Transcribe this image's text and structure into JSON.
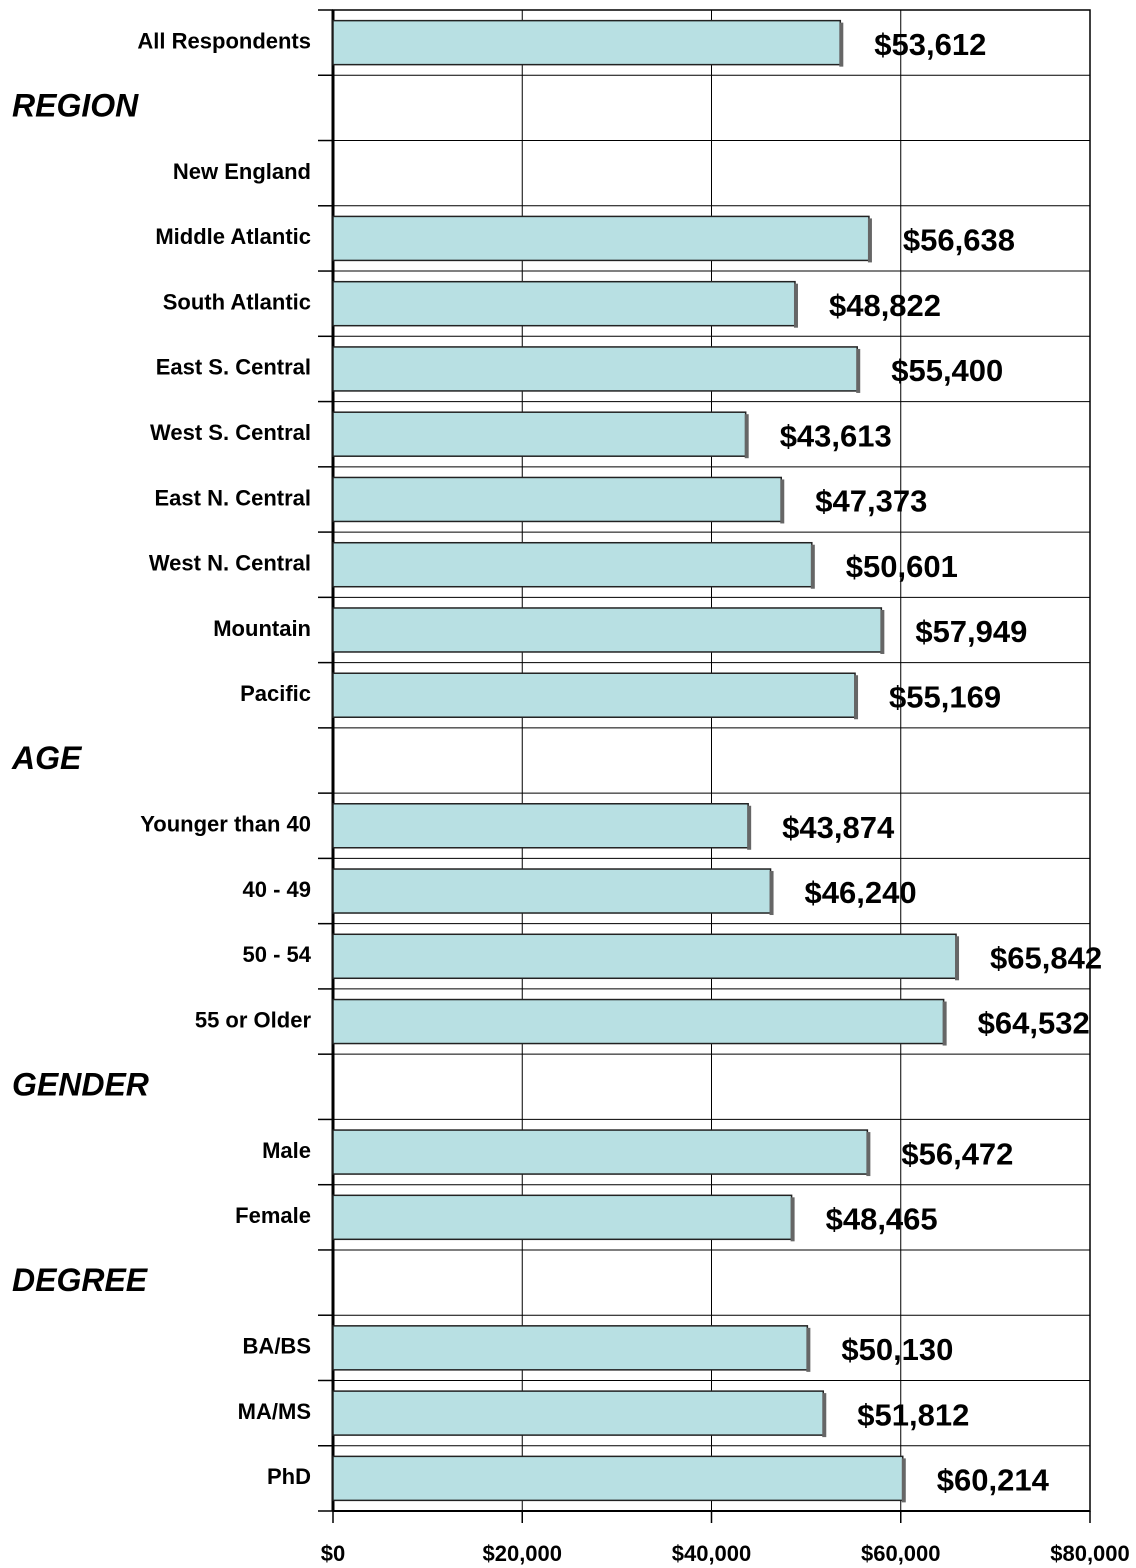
{
  "chart_data": {
    "type": "bar",
    "orientation": "horizontal",
    "color": "#b8e0e3",
    "grid": true,
    "xlim": [
      0,
      80000
    ],
    "xticks": [
      {
        "value": 0,
        "label": "$0"
      },
      {
        "value": 20000,
        "label": "$20,000"
      },
      {
        "value": 40000,
        "label": "$40,000"
      },
      {
        "value": 60000,
        "label": "$60,000"
      },
      {
        "value": 80000,
        "label": "$80,000"
      }
    ],
    "groups": [
      {
        "categories": [
          "All Respondents"
        ],
        "values": [
          53612
        ],
        "value_labels": [
          "$53,612"
        ]
      },
      {
        "name": "REGION",
        "categories": [
          "New England",
          "Middle Atlantic",
          "South Atlantic",
          "East S. Central",
          "West S. Central",
          "East N. Central",
          "West N. Central",
          "Mountain",
          "Pacific"
        ],
        "values": [
          null,
          56638,
          48822,
          55400,
          43613,
          47373,
          50601,
          57949,
          55169
        ],
        "value_labels": [
          null,
          "$56,638",
          "$48,822",
          "$55,400",
          "$43,613",
          "$47,373",
          "$50,601",
          "$57,949",
          "$55,169"
        ]
      },
      {
        "name": "AGE",
        "categories": [
          "Younger than 40",
          "40 - 49",
          "50 - 54",
          "55 or Older"
        ],
        "values": [
          43874,
          46240,
          65842,
          64532
        ],
        "value_labels": [
          "$43,874",
          "$46,240",
          "$65,842",
          "$64,532"
        ]
      },
      {
        "name": "GENDER",
        "categories": [
          "Male",
          "Female"
        ],
        "values": [
          56472,
          48465
        ],
        "value_labels": [
          "$56,472",
          "$48,465"
        ]
      },
      {
        "name": "DEGREE",
        "categories": [
          "BA/BS",
          "MA/MS",
          "PhD"
        ],
        "values": [
          50130,
          51812,
          60214
        ],
        "value_labels": [
          "$50,130",
          "$51,812",
          "$60,214"
        ]
      }
    ]
  }
}
